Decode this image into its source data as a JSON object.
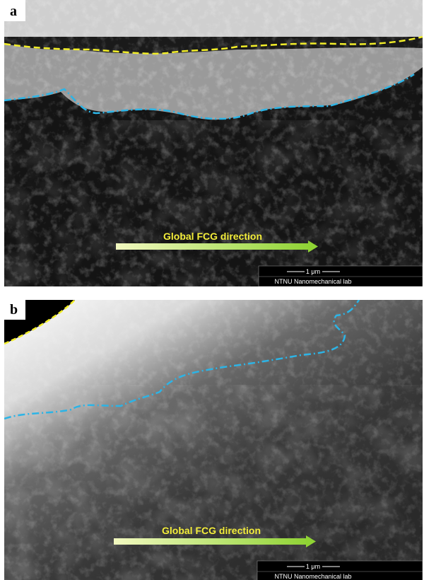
{
  "panels": [
    {
      "label": "a",
      "arrow_text": "Global FCG direction",
      "scale_bar": "1 μm",
      "lab": "NTNU Nanomechanical lab"
    },
    {
      "label": "b",
      "arrow_text": "Global FCG direction",
      "scale_bar": "1 μm",
      "lab": "NTNU Nanomechanical lab"
    }
  ]
}
